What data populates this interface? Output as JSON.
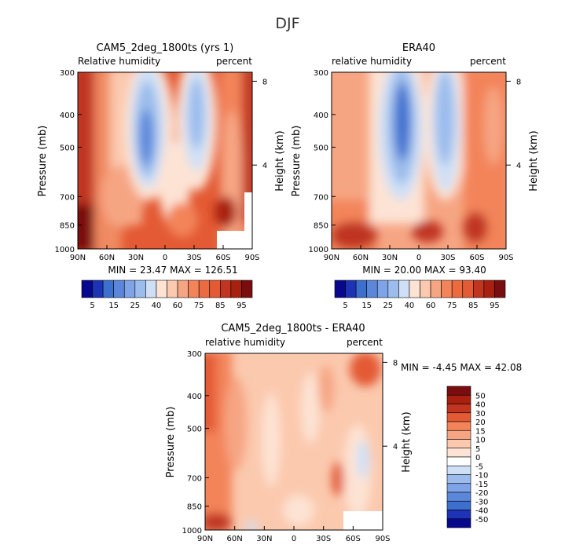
{
  "page": {
    "title": "DJF"
  },
  "chart_data": [
    {
      "type": "heatmap",
      "title": "CAM5_2deg_1800ts (yrs 1)",
      "subtitle_left": "Relative humidity",
      "subtitle_right": "percent",
      "ylabel": "Pressure (mb)",
      "ylabel_right": "Height (km)",
      "x_ticks": [
        "90N",
        "60N",
        "30N",
        "0",
        "30S",
        "60S",
        "90S"
      ],
      "y_ticks": [
        "300",
        "400",
        "500",
        "700",
        "850",
        "1000"
      ],
      "y2_ticks": [
        "8",
        "4"
      ],
      "stats": "MIN = 23.47 MAX = 126.51",
      "colorbar": {
        "labels": [
          "5",
          "15",
          "25",
          "40",
          "60",
          "75",
          "85",
          "95"
        ],
        "levels": [
          5,
          10,
          15,
          20,
          25,
          30,
          40,
          50,
          60,
          65,
          70,
          75,
          80,
          85,
          90,
          95
        ]
      }
    },
    {
      "type": "heatmap",
      "title": "ERA40",
      "subtitle_left": "relative humidity",
      "subtitle_right": "percent",
      "ylabel": "Pressure (mb)",
      "ylabel_right": "Height (km)",
      "x_ticks": [
        "90N",
        "60N",
        "30N",
        "0",
        "30S",
        "60S",
        "90S"
      ],
      "y_ticks": [
        "300",
        "400",
        "500",
        "700",
        "850",
        "1000"
      ],
      "y2_ticks": [
        "8",
        "4"
      ],
      "stats": "MIN = 20.00 MAX = 93.40",
      "colorbar": {
        "labels": [
          "5",
          "15",
          "25",
          "40",
          "60",
          "75",
          "85",
          "95"
        ],
        "levels": [
          5,
          10,
          15,
          20,
          25,
          30,
          40,
          50,
          60,
          65,
          70,
          75,
          80,
          85,
          90,
          95
        ]
      }
    },
    {
      "type": "heatmap",
      "title": "CAM5_2deg_1800ts - ERA40",
      "subtitle_left": "relative humidity",
      "subtitle_right": "percent",
      "ylabel": "Pressure (mb)",
      "ylabel_right": "Height (km)",
      "x_ticks": [
        "90N",
        "60N",
        "30N",
        "0",
        "30S",
        "60S",
        "90S"
      ],
      "y_ticks": [
        "300",
        "400",
        "500",
        "700",
        "850",
        "1000"
      ],
      "y2_ticks": [
        "8",
        "4"
      ],
      "stats": "MIN = -4.45 MAX = 42.08",
      "colorbar": {
        "labels": [
          "50",
          "40",
          "30",
          "20",
          "15",
          "10",
          "5",
          "0",
          "-5",
          "-10",
          "-15",
          "-20",
          "-30",
          "-40",
          "-50"
        ],
        "levels": [
          50,
          40,
          30,
          20,
          15,
          10,
          5,
          0,
          -5,
          -10,
          -15,
          -20,
          -30,
          -40,
          -50
        ]
      }
    }
  ]
}
